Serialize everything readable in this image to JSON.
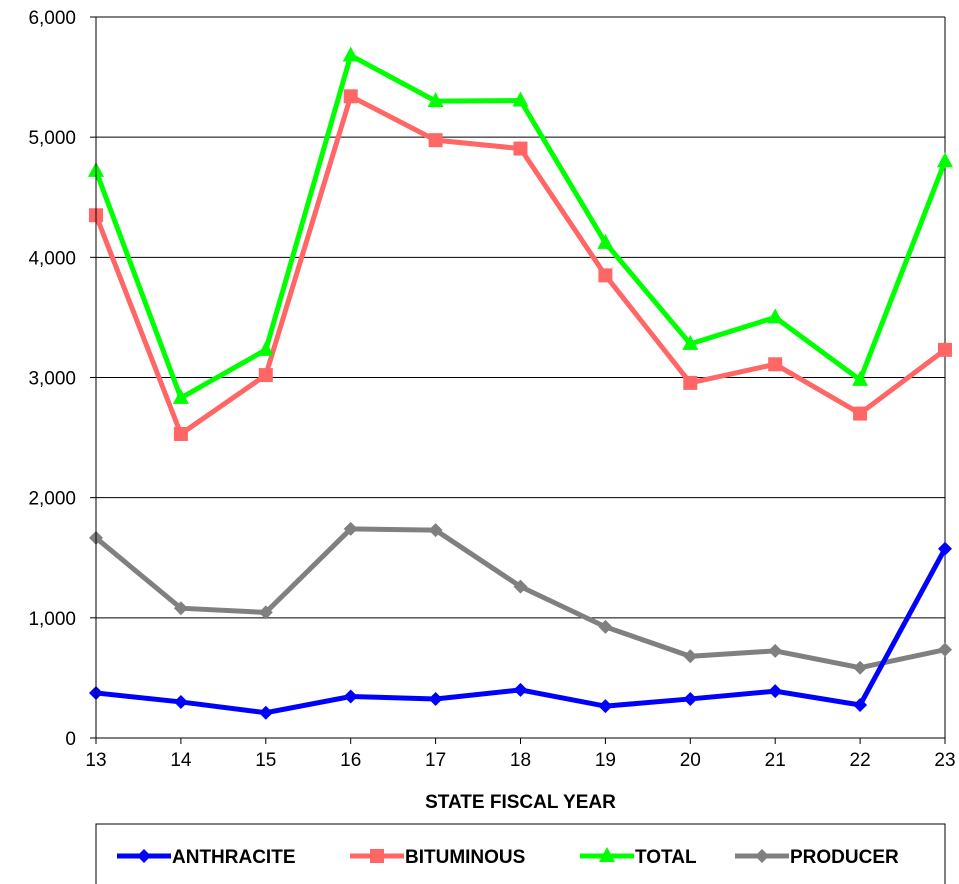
{
  "chart_data": {
    "type": "line",
    "title": "",
    "xlabel": "STATE FISCAL YEAR",
    "ylabel": "",
    "x": [
      13,
      14,
      15,
      16,
      17,
      18,
      19,
      20,
      21,
      22,
      23
    ],
    "x_tick_labels": [
      "13",
      "14",
      "15",
      "16",
      "17",
      "18",
      "19",
      "20",
      "21",
      "22",
      "23"
    ],
    "ylim": [
      0,
      6000
    ],
    "y_ticks": [
      0,
      1000,
      2000,
      3000,
      4000,
      5000,
      6000
    ],
    "y_tick_labels": [
      "0",
      "1,000",
      "2,000",
      "3,000",
      "4,000",
      "5,000",
      "6,000"
    ],
    "grid": "horizontal",
    "legend_position": "bottom",
    "series": [
      {
        "name": "ANTHRACITE",
        "color": "#0000FF",
        "marker": "diamond",
        "values": [
          375,
          300,
          210,
          345,
          325,
          400,
          265,
          325,
          390,
          275,
          1575
        ]
      },
      {
        "name": "BITUMINOUS",
        "color": "#FF6666",
        "marker": "square",
        "values": [
          4350,
          2530,
          3020,
          5340,
          4975,
          4905,
          3850,
          2955,
          3110,
          2700,
          3230
        ]
      },
      {
        "name": "TOTAL",
        "color": "#00FF00",
        "marker": "triangle",
        "values": [
          4720,
          2830,
          3230,
          5680,
          5300,
          5305,
          4120,
          3280,
          3500,
          2980,
          4800
        ]
      },
      {
        "name": "PRODUCER",
        "color": "#808080",
        "marker": "diamond",
        "values": [
          1665,
          1080,
          1045,
          1740,
          1730,
          1260,
          925,
          680,
          725,
          585,
          735
        ]
      }
    ]
  }
}
